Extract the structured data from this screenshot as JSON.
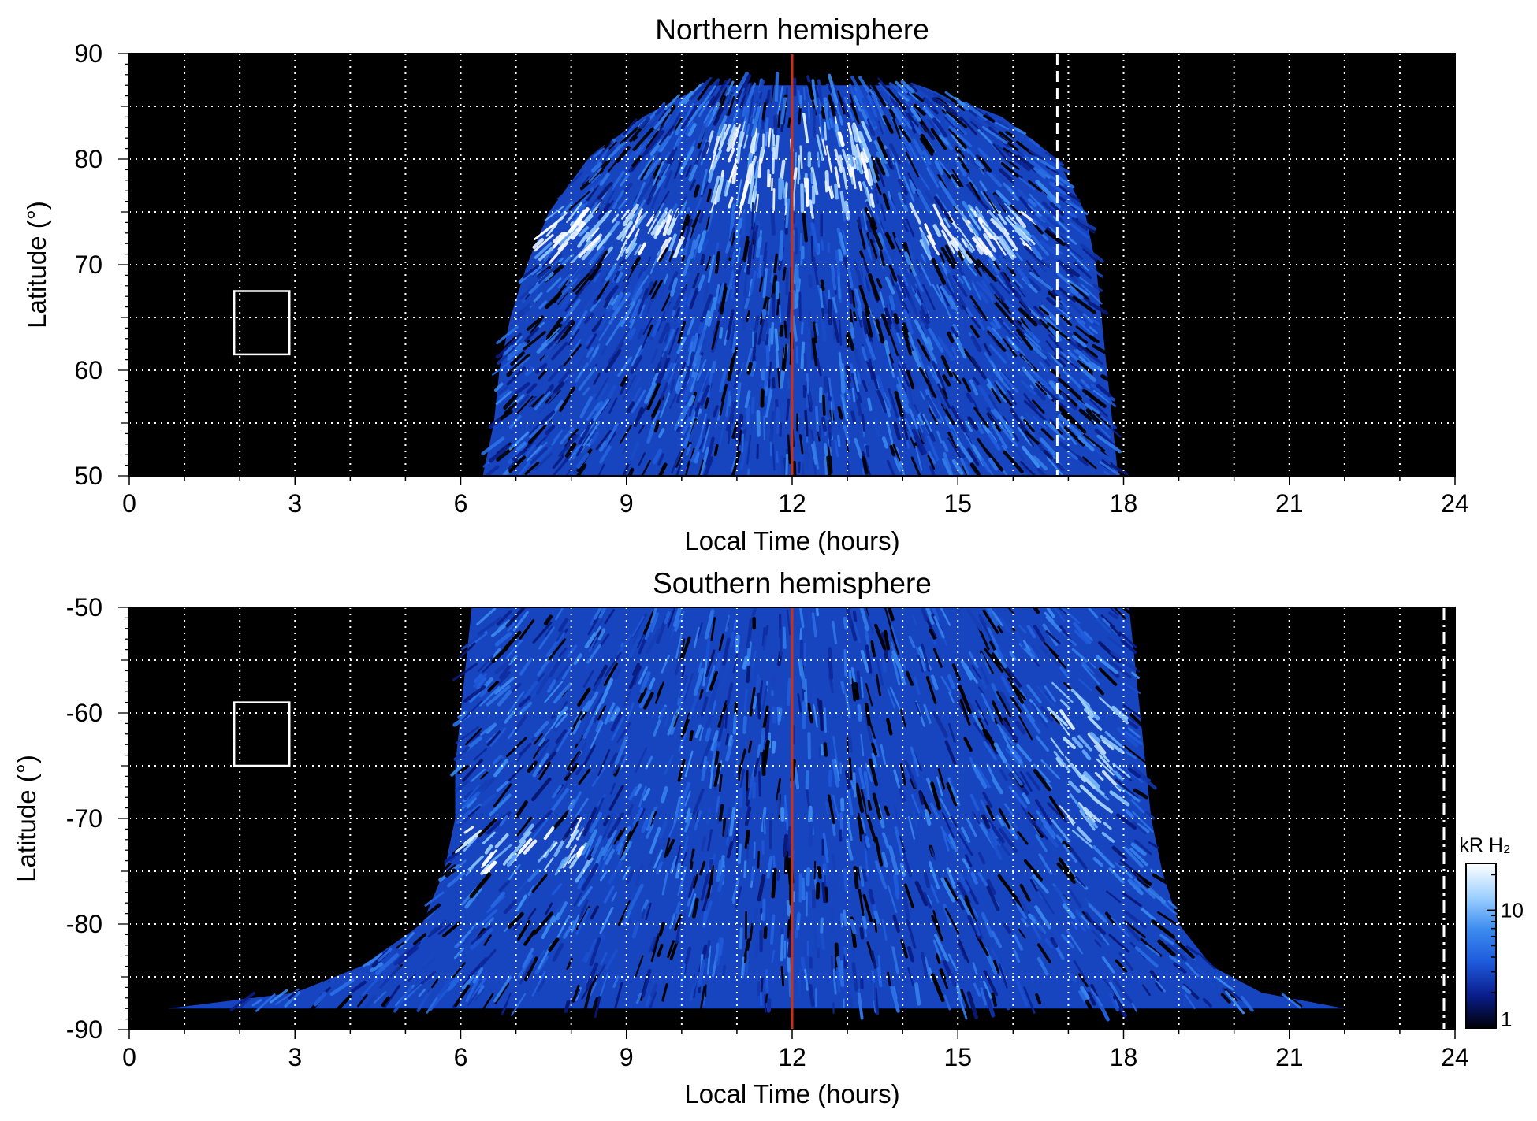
{
  "chart_data": [
    {
      "type": "heatmap",
      "title": "Northern hemisphere",
      "xlabel": "Local Time (hours)",
      "ylabel": "Latitude (°)",
      "xlim": [
        0,
        24
      ],
      "ylim": [
        50,
        90
      ],
      "x_ticks": [
        0,
        3,
        6,
        9,
        12,
        15,
        18,
        21,
        24
      ],
      "y_ticks": [
        50,
        60,
        70,
        80,
        90
      ],
      "grid": true,
      "background_color": "#000000",
      "emission_extent": {
        "latitudes": [
          50,
          55,
          60,
          65,
          70,
          75,
          80,
          84,
          87
        ],
        "local_time_start": [
          6.4,
          6.6,
          6.7,
          6.9,
          7.2,
          7.6,
          8.3,
          9.3,
          10.4
        ],
        "local_time_end": [
          17.9,
          17.8,
          17.7,
          17.6,
          17.5,
          17.3,
          16.8,
          15.8,
          14.3
        ]
      },
      "bright_oval_bands": [
        {
          "lt_range": [
            7.4,
            10.0
          ],
          "lat_range": [
            71,
            75
          ],
          "level": "bright"
        },
        {
          "lt_range": [
            10.5,
            13.5
          ],
          "lat_range": [
            75,
            83
          ],
          "level": "bright"
        },
        {
          "lt_range": [
            14.2,
            16.3
          ],
          "lat_range": [
            71,
            75
          ],
          "level": "bright"
        }
      ],
      "markers": {
        "noon_line_lt": 12,
        "dashed_line_lt": 16.8,
        "box": {
          "lt_range": [
            1.9,
            2.9
          ],
          "lat_range": [
            61.5,
            67.5
          ]
        }
      }
    },
    {
      "type": "heatmap",
      "title": "Southern hemisphere",
      "xlabel": "Local Time (hours)",
      "ylabel": "Latitude (°)",
      "xlim": [
        0,
        24
      ],
      "ylim": [
        -90,
        -50
      ],
      "x_ticks": [
        0,
        3,
        6,
        9,
        12,
        15,
        18,
        21,
        24
      ],
      "y_ticks": [
        -50,
        -60,
        -70,
        -80,
        -90
      ],
      "grid": true,
      "background_color": "#000000",
      "emission_extent": {
        "latitudes": [
          -50,
          -55,
          -60,
          -65,
          -70,
          -75,
          -80,
          -84,
          -86.5,
          -88
        ],
        "local_time_start": [
          6.2,
          6.1,
          6.0,
          5.9,
          5.9,
          5.7,
          5.3,
          4.2,
          3.0,
          0.7
        ],
        "local_time_end": [
          18.1,
          18.2,
          18.3,
          18.4,
          18.5,
          18.7,
          19.0,
          19.6,
          20.5,
          22.0
        ]
      },
      "bright_oval_bands": [
        {
          "lt_range": [
            6.0,
            8.3
          ],
          "lat_range": [
            -75,
            -71
          ],
          "level": "bright"
        },
        {
          "lt_range": [
            16.8,
            18.0
          ],
          "lat_range": [
            -72,
            -58
          ],
          "level": "medium"
        }
      ],
      "markers": {
        "noon_line_lt": 12,
        "dash_dot_line_lt": 23.8,
        "box": {
          "lt_range": [
            1.9,
            2.9
          ],
          "lat_range": [
            -65,
            -59
          ]
        }
      }
    }
  ],
  "colorbar": {
    "label": "kR H₂",
    "scale": "log",
    "range": [
      1,
      25
    ],
    "ticks": [
      "1",
      "10"
    ],
    "colors": [
      "#000008",
      "#0a1e8c",
      "#1e5adc",
      "#3c8cf0",
      "#a0d2ff",
      "#ffffff"
    ]
  },
  "colors": {
    "noon_line": "#c83218",
    "markers": "#ffffff",
    "grid": "#ffffff"
  }
}
